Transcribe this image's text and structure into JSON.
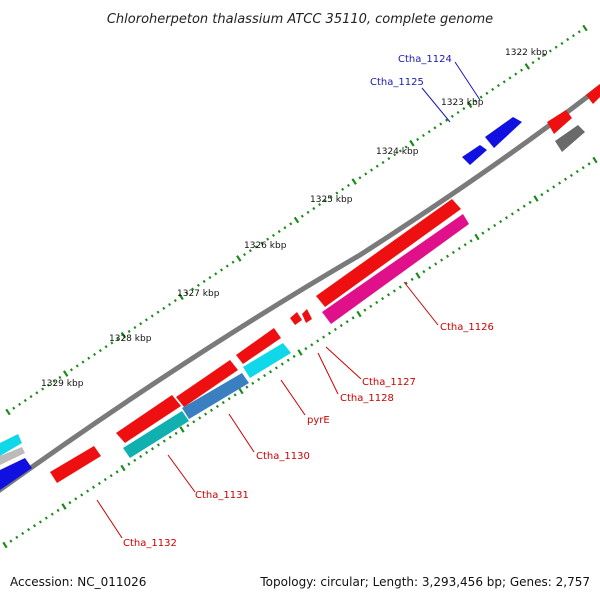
{
  "title": "Chloroherpeton thalassium ATCC 35110, complete genome",
  "footer": {
    "accession": "Accession: NC_011026",
    "summary": "Topology: circular; Length: 3,293,456 bp; Genes: 2,757"
  },
  "ticks": [
    "1322 kbp",
    "1323 kbp",
    "1324 kbp",
    "1325 kbp",
    "1326 kbp",
    "1327 kbp",
    "1328 kbp",
    "1329 kbp"
  ],
  "genes": [
    {
      "label": "Ctha_1124",
      "strand": "forward",
      "color": "#1010e0"
    },
    {
      "label": "Ctha_1125",
      "strand": "forward",
      "color": "#1010e0"
    },
    {
      "label": "Ctha_1126",
      "strand": "reverse",
      "color": "#e0108a"
    },
    {
      "label": "Ctha_1127",
      "strand": "reverse",
      "color": "#ee1010"
    },
    {
      "label": "Ctha_1128",
      "strand": "reverse",
      "color": "#ee1010"
    },
    {
      "label": "pyrE",
      "strand": "reverse",
      "color": "#ee1010"
    },
    {
      "label": "Ctha_1130",
      "strand": "reverse",
      "color": "#ee1010"
    },
    {
      "label": "Ctha_1131",
      "strand": "reverse",
      "color": "#ee1010"
    },
    {
      "label": "Ctha_1132",
      "strand": "reverse",
      "color": "#ee1010"
    }
  ],
  "colors": {
    "backbone": "#777777",
    "tick": "#1a8a1a",
    "forward_label": "#1a1ab0",
    "reverse_label": "#cc0000",
    "cds": "#ee1010",
    "blue": "#1010e0",
    "cyan": "#10d8e8",
    "teal": "#10b0b0",
    "steelblue": "#3a80c0",
    "magenta": "#e0108a",
    "grey": "#6a6a6a"
  }
}
